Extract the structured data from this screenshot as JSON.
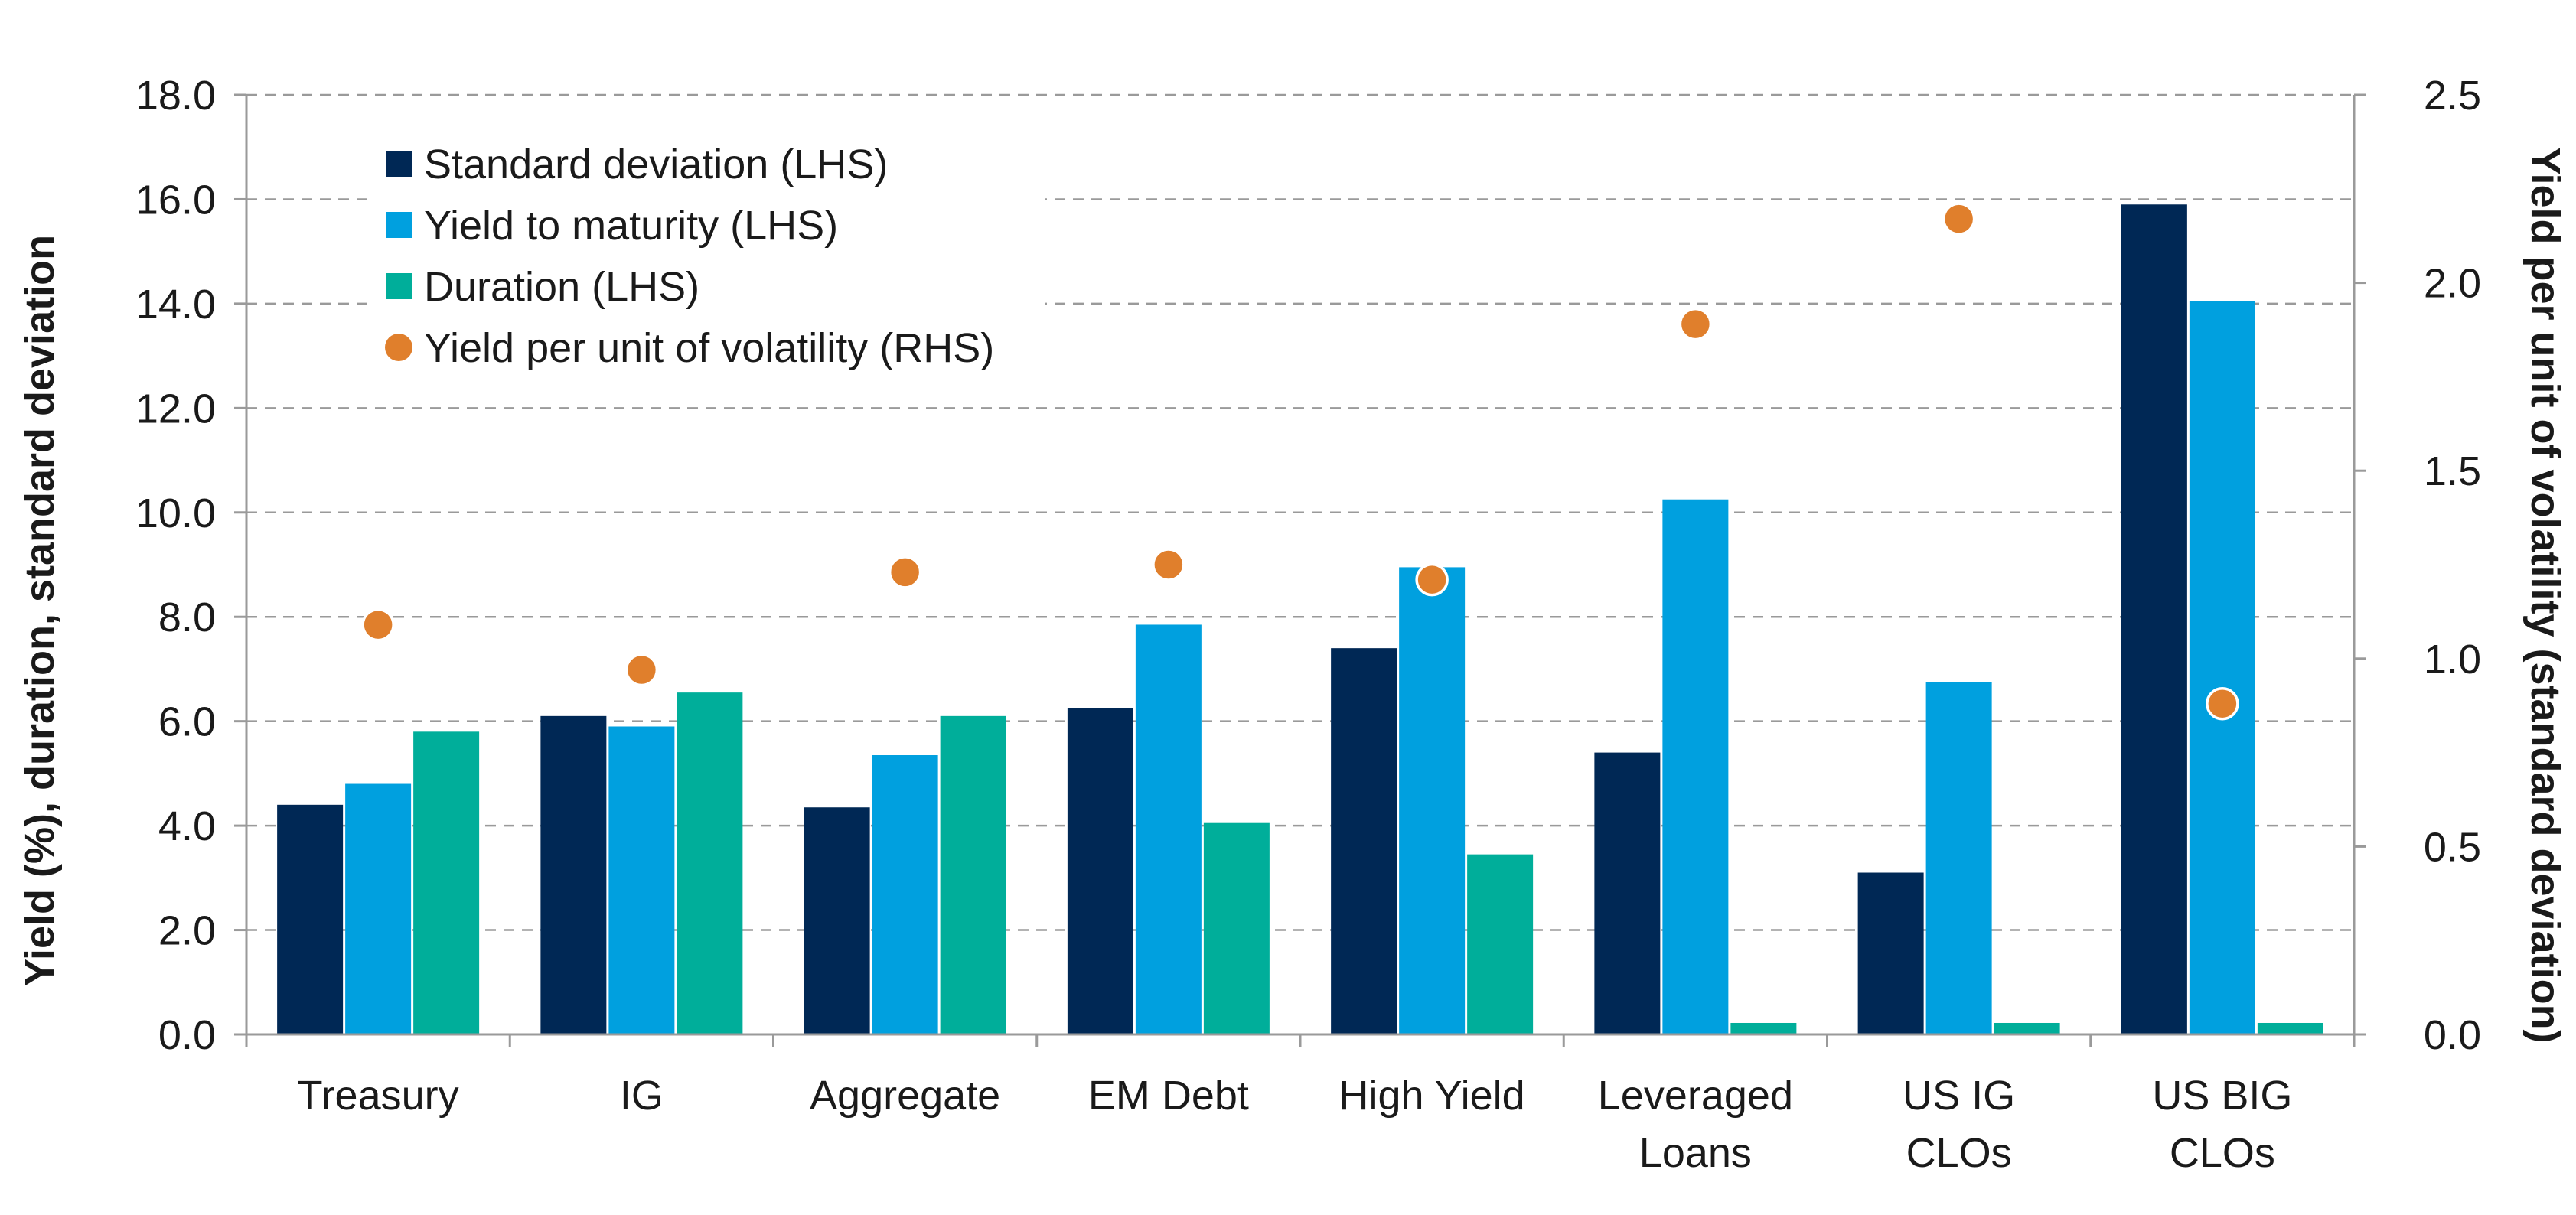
{
  "chart_data": {
    "type": "bar",
    "title": "",
    "categories": [
      [
        "Treasury"
      ],
      [
        "IG"
      ],
      [
        "Aggregate"
      ],
      [
        "EM Debt"
      ],
      [
        "High Yield"
      ],
      [
        "Leveraged",
        "Loans"
      ],
      [
        "US IG",
        "CLOs"
      ],
      [
        "US BIG",
        "CLOs"
      ]
    ],
    "series": [
      {
        "name": "Standard deviation (LHS)",
        "color": "#002855",
        "axis": "left",
        "kind": "bar",
        "values": [
          4.4,
          6.1,
          4.35,
          6.25,
          7.4,
          5.4,
          3.1,
          15.9
        ]
      },
      {
        "name": "Yield to maturity (LHS)",
        "color": "#00A0DF",
        "axis": "left",
        "kind": "bar",
        "values": [
          4.8,
          5.9,
          5.35,
          7.85,
          8.95,
          10.25,
          6.75,
          14.05
        ]
      },
      {
        "name": "Duration (LHS)",
        "color": "#00AE9A",
        "axis": "left",
        "kind": "bar",
        "values": [
          5.8,
          6.55,
          6.1,
          4.05,
          3.45,
          0.22,
          0.22,
          0.22
        ]
      },
      {
        "name": "Yield per unit of volatility (RHS)",
        "color": "#E07F2C",
        "axis": "right",
        "kind": "scatter",
        "values": [
          1.09,
          0.97,
          1.23,
          1.25,
          1.21,
          1.89,
          2.17,
          0.88
        ]
      }
    ],
    "y_left": {
      "label": "Yield (%), duration, standard deviation",
      "range": [
        0,
        18
      ],
      "ticks": [
        "0.0",
        "2.0",
        "4.0",
        "6.0",
        "8.0",
        "10.0",
        "12.0",
        "14.0",
        "16.0",
        "18.0"
      ]
    },
    "y_right": {
      "label": "Yield per unit of volatility (standard deviation)",
      "range": [
        0,
        2.5
      ],
      "ticks": [
        "0.0",
        "0.5",
        "1.0",
        "1.5",
        "2.0",
        "2.5"
      ]
    },
    "grid": true,
    "legend_position": "top-left"
  }
}
